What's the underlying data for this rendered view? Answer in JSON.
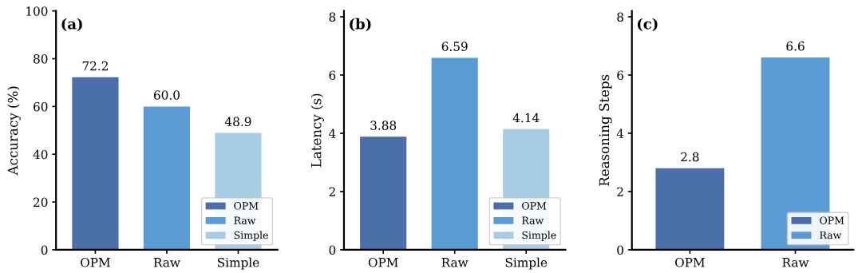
{
  "chart_data": [
    {
      "type": "bar",
      "title": "(a)",
      "ylabel": "Accuracy (%)",
      "categories": [
        "OPM",
        "Raw",
        "Simple"
      ],
      "series": [
        {
          "name": "OPM",
          "color": "#4a6ea8",
          "values": [
            72.2,
            null,
            null
          ],
          "value_labels": [
            "72.2",
            null,
            null
          ]
        },
        {
          "name": "Raw",
          "color": "#5b9bd5",
          "values": [
            null,
            60.0,
            null
          ],
          "value_labels": [
            null,
            "60.0",
            null
          ]
        },
        {
          "name": "Simple",
          "color": "#a8cce4",
          "values": [
            null,
            null,
            48.9
          ],
          "value_labels": [
            null,
            null,
            "48.9"
          ]
        }
      ],
      "ylim": [
        0,
        100
      ],
      "yticks": [
        0,
        20,
        40,
        60,
        80,
        100
      ],
      "legend": "bottom right"
    },
    {
      "type": "bar",
      "title": "(b)",
      "ylabel": "Latency (s)",
      "categories": [
        "OPM",
        "Raw",
        "Simple"
      ],
      "series": [
        {
          "name": "OPM",
          "color": "#4a6ea8",
          "values": [
            3.88,
            null,
            null
          ],
          "value_labels": [
            "3.88",
            null,
            null
          ]
        },
        {
          "name": "Raw",
          "color": "#5b9bd5",
          "values": [
            null,
            6.59,
            null
          ],
          "value_labels": [
            null,
            "6.59",
            null
          ]
        },
        {
          "name": "Simple",
          "color": "#a8cce4",
          "values": [
            null,
            null,
            4.14
          ],
          "value_labels": [
            null,
            null,
            "4.14"
          ]
        }
      ],
      "ylim": [
        0,
        8.2
      ],
      "yticks": [
        0,
        2,
        4,
        6,
        8
      ],
      "legend": "bottom right"
    },
    {
      "type": "bar",
      "title": "(c)",
      "ylabel": "Reasoning Steps",
      "categories": [
        "OPM",
        "Raw"
      ],
      "series": [
        {
          "name": "OPM",
          "color": "#4a6ea8",
          "values": [
            2.8,
            null
          ],
          "value_labels": [
            "2.8",
            null
          ]
        },
        {
          "name": "Raw",
          "color": "#5b9bd5",
          "values": [
            null,
            6.6
          ],
          "value_labels": [
            null,
            "6.6"
          ]
        }
      ],
      "ylim": [
        0,
        8.2
      ],
      "yticks": [
        0,
        2,
        4,
        6,
        8
      ],
      "legend": "bottom right"
    }
  ]
}
